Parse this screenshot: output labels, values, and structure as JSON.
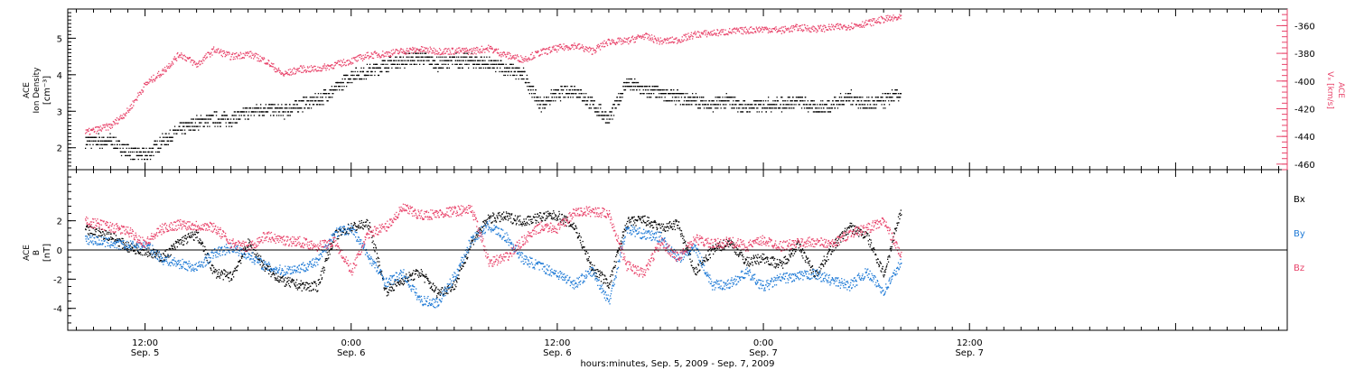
{
  "colors": {
    "black": "#000000",
    "pink": "#e8436a",
    "blue": "#1f7ad6",
    "axis": "#000000"
  },
  "xaxis": {
    "label": "hours:minutes, Sep.  5, 2009 - Sep.  7, 2009",
    "range_hours": [
      -4.5,
      66.5
    ],
    "ticks": [
      {
        "hour": 0,
        "time": "12:00",
        "date": "Sep. 5"
      },
      {
        "hour": 12,
        "time": "0:00",
        "date": "Sep. 6"
      },
      {
        "hour": 24,
        "time": "12:00",
        "date": "Sep. 6"
      },
      {
        "hour": 36,
        "time": "0:00",
        "date": "Sep. 7"
      },
      {
        "hour": 48,
        "time": "12:00",
        "date": "Sep. 7"
      }
    ]
  },
  "chart_data": [
    {
      "type": "scatter",
      "panel": "top",
      "ylabel_left": [
        "ACE",
        "Ion Density",
        "[cm⁻³]"
      ],
      "ylabel_right": [
        "ACE",
        "Vₓ [km/s]"
      ],
      "ylim_left": [
        1.4,
        5.8
      ],
      "ylim_right": [
        -464,
        -348
      ],
      "yticks_left": [
        "2",
        "3",
        "4",
        "5"
      ],
      "yticks_right": [
        "-360",
        "-380",
        "-400",
        "-420",
        "-440",
        "-460"
      ],
      "series": [
        {
          "name": "Ion Density",
          "axis": "left",
          "color": "black",
          "x": [
            -3.5,
            -2,
            -1,
            0,
            1,
            2,
            3,
            4,
            5,
            6,
            7,
            8,
            9,
            10,
            11,
            12,
            13,
            14,
            15,
            16,
            17,
            18,
            19,
            20,
            21,
            22,
            23,
            24,
            25,
            26,
            27,
            28,
            29,
            30,
            31,
            32,
            33,
            34,
            35,
            36,
            37,
            38,
            39,
            40,
            41,
            42,
            43,
            44
          ],
          "y": [
            2.2,
            2.2,
            1.9,
            1.8,
            2.2,
            2.5,
            2.7,
            2.8,
            2.8,
            3.0,
            3.1,
            3.0,
            3.2,
            3.3,
            3.6,
            4.0,
            4.1,
            4.3,
            4.4,
            4.5,
            4.3,
            4.4,
            4.4,
            4.3,
            4.2,
            4.0,
            3.2,
            3.5,
            3.6,
            3.2,
            2.8,
            3.8,
            3.6,
            3.5,
            3.4,
            3.3,
            3.2,
            3.3,
            3.1,
            3.2,
            3.2,
            3.3,
            3.1,
            3.2,
            3.4,
            3.2,
            3.3,
            3.5
          ]
        },
        {
          "name": "Vx",
          "axis": "right",
          "color": "pink",
          "x": [
            -3.5,
            -2,
            -1,
            0,
            1,
            2,
            3,
            4,
            5,
            6,
            7,
            8,
            9,
            10,
            11,
            12,
            13,
            14,
            15,
            16,
            17,
            18,
            19,
            20,
            21,
            22,
            23,
            24,
            25,
            26,
            27,
            28,
            29,
            30,
            31,
            32,
            33,
            34,
            35,
            36,
            37,
            38,
            39,
            40,
            41,
            42,
            43,
            44
          ],
          "y": [
            -437,
            -432,
            -421,
            -402,
            -393,
            -380,
            -388,
            -377,
            -382,
            -380,
            -385,
            -395,
            -391,
            -391,
            -388,
            -385,
            -381,
            -380,
            -378,
            -377,
            -378,
            -378,
            -378,
            -376,
            -381,
            -384,
            -379,
            -376,
            -374,
            -378,
            -371,
            -371,
            -367,
            -371,
            -370,
            -366,
            -365,
            -364,
            -363,
            -362,
            -363,
            -361,
            -362,
            -361,
            -360,
            -358,
            -355,
            -354
          ]
        }
      ]
    },
    {
      "type": "scatter",
      "panel": "bottom",
      "ylabel_left": [
        "ACE",
        "B",
        "[nT]"
      ],
      "ylim": [
        -5.5,
        5.5
      ],
      "yticks": [
        "2",
        "0",
        "-2",
        "-4"
      ],
      "legend": [
        "Bx",
        "By",
        "Bz"
      ],
      "legend_position": "right",
      "series": [
        {
          "name": "Bx",
          "color": "black",
          "x": [
            -3.5,
            -2,
            -1,
            0,
            1,
            2,
            3,
            4,
            5,
            6,
            7,
            8,
            9,
            10,
            11,
            12,
            13,
            14,
            15,
            16,
            17,
            18,
            19,
            20,
            21,
            22,
            23,
            24,
            25,
            26,
            27,
            28,
            29,
            30,
            31,
            32,
            33,
            34,
            35,
            36,
            37,
            38,
            39,
            40,
            41,
            42,
            43,
            44
          ],
          "y": [
            1.4,
            1.0,
            0.2,
            0.0,
            -0.5,
            0.6,
            1.1,
            -1.5,
            -1.8,
            0.5,
            -1.2,
            -2.1,
            -2.4,
            -2.5,
            1.0,
            1.6,
            1.8,
            -2.8,
            -2.0,
            -1.5,
            -2.9,
            -2.4,
            0.6,
            2.2,
            2.3,
            2.0,
            2.3,
            2.4,
            1.6,
            -1.2,
            -2.3,
            1.9,
            2.1,
            1.5,
            1.8,
            -1.5,
            0.0,
            0.6,
            -0.8,
            -0.5,
            -1.0,
            0.4,
            -1.7,
            0.2,
            1.6,
            1.0,
            -1.6,
            2.8
          ]
        },
        {
          "name": "By",
          "color": "blue",
          "x": [
            -3.5,
            -2,
            -1,
            0,
            1,
            2,
            3,
            4,
            5,
            6,
            7,
            8,
            9,
            10,
            11,
            12,
            13,
            14,
            15,
            16,
            17,
            18,
            19,
            20,
            21,
            22,
            23,
            24,
            25,
            26,
            27,
            28,
            29,
            30,
            31,
            32,
            33,
            34,
            35,
            36,
            37,
            38,
            39,
            40,
            41,
            42,
            43,
            44
          ],
          "y": [
            0.8,
            0.5,
            0.3,
            0.4,
            -0.6,
            -0.9,
            -1.2,
            -0.2,
            0.2,
            -0.3,
            -1.1,
            -1.4,
            -1.2,
            -0.8,
            1.2,
            1.5,
            -0.4,
            -2.2,
            -1.6,
            -3.4,
            -3.6,
            -1.8,
            0.8,
            1.7,
            0.9,
            -0.6,
            -1.1,
            -1.6,
            -2.3,
            -1.4,
            -3.5,
            1.5,
            1.1,
            0.9,
            -0.6,
            0.2,
            -2.4,
            -2.3,
            -1.5,
            -2.5,
            -1.9,
            -1.8,
            -1.6,
            -2.1,
            -2.4,
            -1.5,
            -2.8,
            -0.8
          ]
        },
        {
          "name": "Bz",
          "color": "pink",
          "x": [
            -3.5,
            -2,
            -1,
            0,
            1,
            2,
            3,
            4,
            5,
            6,
            7,
            8,
            9,
            10,
            11,
            12,
            13,
            14,
            15,
            16,
            17,
            18,
            19,
            20,
            21,
            22,
            23,
            24,
            25,
            26,
            27,
            28,
            29,
            30,
            31,
            32,
            33,
            34,
            35,
            36,
            37,
            38,
            39,
            40,
            41,
            42,
            43,
            44
          ],
          "y": [
            2.0,
            1.6,
            1.3,
            0.5,
            1.5,
            1.8,
            1.7,
            1.6,
            0.5,
            0.2,
            1.0,
            0.7,
            0.6,
            0.3,
            0.6,
            -1.4,
            1.2,
            1.6,
            2.9,
            2.4,
            2.5,
            2.7,
            2.8,
            -0.8,
            -0.5,
            0.7,
            1.6,
            1.5,
            2.6,
            2.7,
            2.5,
            -1.0,
            -1.6,
            0.6,
            -0.5,
            0.8,
            0.4,
            0.6,
            0.3,
            0.7,
            0.3,
            0.5,
            0.6,
            0.4,
            1.2,
            1.5,
            2.0,
            -0.4
          ]
        }
      ]
    }
  ]
}
